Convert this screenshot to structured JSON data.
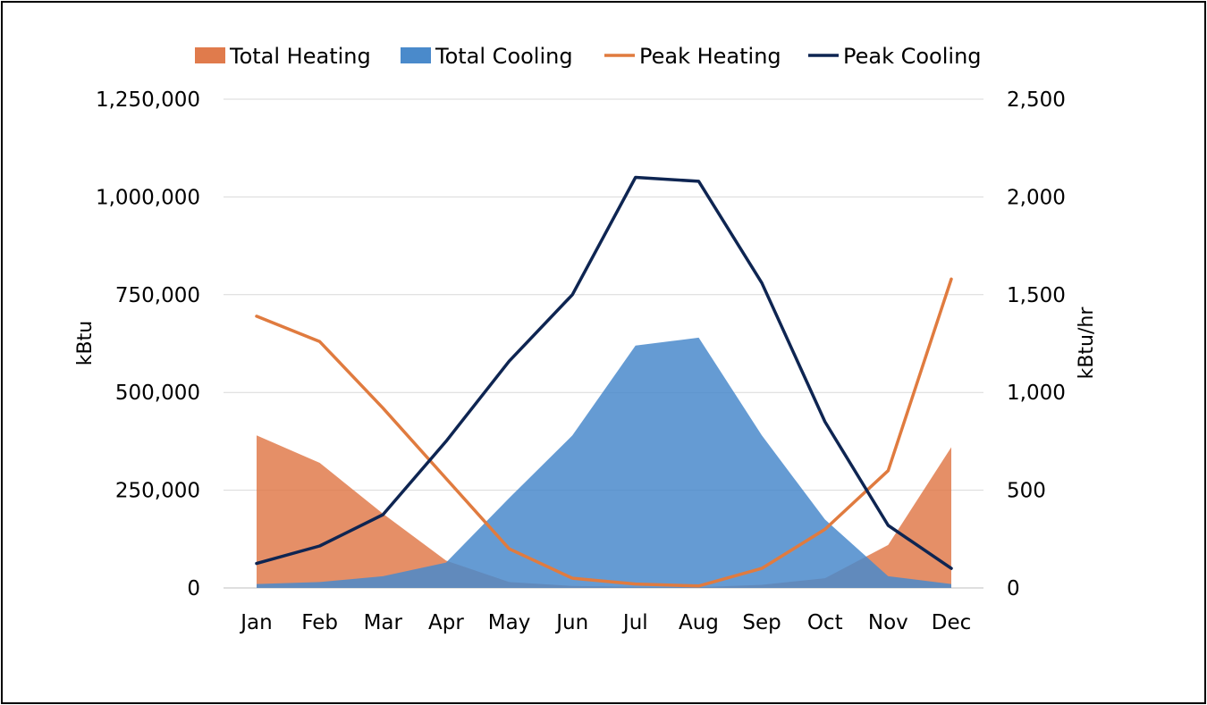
{
  "chart_data": {
    "type": "area",
    "categories": [
      "Jan",
      "Feb",
      "Mar",
      "Apr",
      "May",
      "Jun",
      "Jul",
      "Aug",
      "Sep",
      "Oct",
      "Nov",
      "Dec"
    ],
    "series": [
      {
        "name": "Total Heating",
        "type": "area",
        "axis": "left",
        "color": "#E07B4C",
        "values": [
          390000,
          320000,
          190000,
          70000,
          15000,
          5000,
          3000,
          2000,
          8000,
          25000,
          110000,
          360000
        ]
      },
      {
        "name": "Total Cooling",
        "type": "area",
        "axis": "left",
        "color": "#4A8ACB",
        "values": [
          10000,
          15000,
          30000,
          65000,
          230000,
          390000,
          620000,
          640000,
          390000,
          175000,
          30000,
          10000
        ]
      },
      {
        "name": "Peak Heating",
        "type": "line",
        "axis": "right",
        "color": "#E07B3F",
        "values": [
          1390,
          1260,
          920,
          560,
          200,
          50,
          20,
          10,
          100,
          300,
          600,
          1580
        ]
      },
      {
        "name": "Peak Cooling",
        "type": "line",
        "axis": "right",
        "color": "#0E2552",
        "values": [
          125,
          215,
          375,
          750,
          1160,
          1500,
          2100,
          2080,
          1560,
          850,
          320,
          100
        ]
      }
    ],
    "y_left": {
      "label": "kBtu",
      "range": [
        0,
        1250000
      ],
      "ticks": [
        "0",
        "250,000",
        "500,000",
        "750,000",
        "1,000,000",
        "1,250,000"
      ]
    },
    "y_right": {
      "label": "kBtu/hr",
      "range": [
        0,
        2500
      ],
      "ticks": [
        "0",
        "500",
        "1,000",
        "1,500",
        "2,000",
        "2,500"
      ]
    },
    "grid": true,
    "legend": "top"
  }
}
